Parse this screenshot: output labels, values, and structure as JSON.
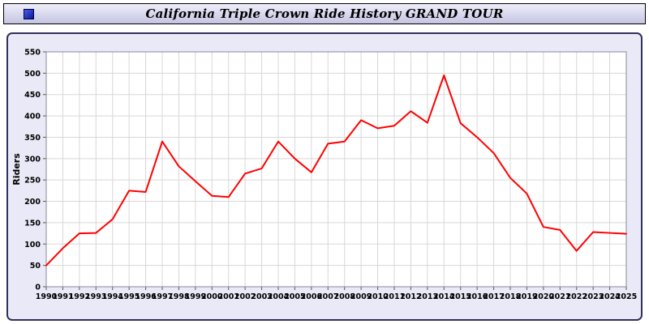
{
  "window": {
    "title": "California Triple Crown Ride History GRAND TOUR",
    "icon": "blue-square-icon"
  },
  "chart_data": {
    "type": "line",
    "title": "California Triple Crown Ride History GRAND TOUR",
    "xlabel": "",
    "ylabel": "Riders",
    "x": [
      1990,
      1991,
      1992,
      1993,
      1994,
      1995,
      1996,
      1997,
      1998,
      1999,
      2000,
      2001,
      2002,
      2003,
      2004,
      2005,
      2006,
      2007,
      2008,
      2009,
      2010,
      2011,
      2012,
      2013,
      2014,
      2015,
      2016,
      2017,
      2018,
      2019,
      2020,
      2021,
      2022,
      2023,
      2024,
      2025
    ],
    "series": [
      {
        "name": "Riders",
        "color": "#ff0000",
        "values": [
          50,
          90,
          125,
          126,
          158,
          225,
          222,
          340,
          282,
          247,
          213,
          210,
          265,
          277,
          340,
          300,
          268,
          335,
          340,
          390,
          371,
          377,
          411,
          384,
          495,
          383,
          350,
          313,
          255,
          218,
          140,
          133,
          84,
          128,
          126,
          124
        ]
      }
    ],
    "ylim": [
      0,
      550
    ],
    "ytick_step": 50,
    "grid": true,
    "grid_color": "#d8d8d8",
    "plot_border_color": "#8a8a9a",
    "plot_bg": "#ffffff",
    "panel_bg": "#e9e9f7",
    "legend": "none"
  }
}
